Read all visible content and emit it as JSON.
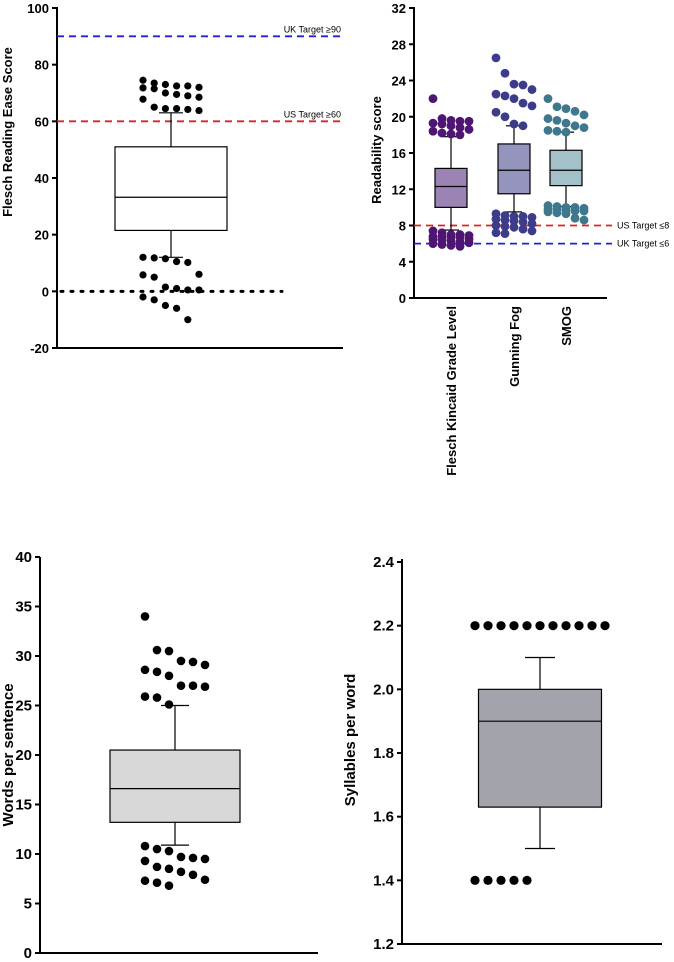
{
  "chart_data": [
    {
      "id": "fre",
      "type": "box",
      "ylabel": "Flesch Reading Ease Score",
      "ylim": [
        -20,
        100
      ],
      "yticks": [
        -20,
        0,
        20,
        40,
        60,
        80,
        100
      ],
      "reference_lines": [
        {
          "value": 90,
          "label": "UK Target ≥90",
          "color": "#2222cc",
          "style": "dashed"
        },
        {
          "value": 60,
          "label": "US Target ≥60",
          "color": "#dd2222",
          "style": "dashed"
        },
        {
          "value": 0,
          "label": "",
          "color": "#000000",
          "style": "dotted"
        }
      ],
      "boxes": [
        {
          "name": "",
          "color": "#ffffff",
          "point_color": "#000000",
          "q1": 21.5,
          "median": 33.2,
          "q3": 51,
          "whisker_low": 12,
          "whisker_high": 63,
          "outliers": [
            74.5,
            73.5,
            73,
            72.5,
            72.5,
            72,
            71.8,
            71.5,
            70,
            69.5,
            69,
            68.5,
            67.8,
            65,
            64.5,
            64.5,
            64.2,
            63.8,
            12,
            11.8,
            11.5,
            10.5,
            10.2,
            6,
            5.8,
            5,
            1.5,
            1,
            0.5,
            0.5,
            -2,
            -3,
            -5,
            -6,
            -10
          ]
        }
      ]
    },
    {
      "id": "grade",
      "type": "box",
      "ylabel": "Readability score",
      "ylim": [
        0,
        32
      ],
      "yticks": [
        0,
        4,
        8,
        12,
        16,
        20,
        24,
        28,
        32
      ],
      "categories": [
        "Flesch Kincaid Grade Level",
        "Gunning Fog",
        "SMOG"
      ],
      "reference_lines": [
        {
          "value": 8,
          "label": "US Target ≤8",
          "color": "#dd2222",
          "style": "dashed"
        },
        {
          "value": 6,
          "label": "UK Target ≤6",
          "color": "#2222cc",
          "style": "dashed"
        }
      ],
      "boxes": [
        {
          "name": "Flesch Kincaid Grade Level",
          "color": "#9b84b4",
          "point_color": "#4e1573",
          "q1": 10,
          "median": 12.3,
          "q3": 14.3,
          "whisker_low": 7.5,
          "whisker_high": 17.8,
          "outliers": [
            22,
            19.8,
            19.6,
            19.5,
            19.5,
            19.3,
            19.2,
            19,
            18.8,
            18.6,
            18.4,
            18.2,
            18.1,
            18,
            7.4,
            7.2,
            7,
            7,
            6.9,
            6.8,
            6.8,
            6.7,
            6.7,
            6.5,
            6.5,
            6.4,
            6.3,
            6.2,
            6.1,
            6,
            5.9,
            5.8,
            5.7
          ]
        },
        {
          "name": "Gunning Fog",
          "color": "#9494bc",
          "point_color": "#3c3c8a",
          "q1": 11.5,
          "median": 14.1,
          "q3": 17,
          "whisker_low": 9.5,
          "whisker_high": 19,
          "outliers": [
            26.5,
            24.8,
            23.6,
            23.5,
            23,
            22.5,
            22.3,
            22,
            21.5,
            21.2,
            20.5,
            20,
            19.2,
            19,
            9.3,
            9.1,
            9,
            9,
            8.9,
            8.7,
            8.6,
            8.5,
            8.4,
            8.2,
            8,
            7.9,
            7.8,
            7.6,
            7.4,
            7.2,
            7.1
          ]
        },
        {
          "name": "SMOG",
          "color": "#a4c0c8",
          "point_color": "#3f788c",
          "q1": 12.4,
          "median": 14.1,
          "q3": 16.3,
          "whisker_low": 10.1,
          "whisker_high": 18.3,
          "outliers": [
            22,
            21.1,
            20.9,
            20.6,
            20.2,
            19.8,
            19.6,
            19.3,
            19,
            18.8,
            18.5,
            18.4,
            18.3,
            10.2,
            10.1,
            10,
            10,
            9.9,
            9.8,
            9.8,
            9.7,
            9.6,
            9.6,
            9.5,
            9.4,
            9.3,
            8.8,
            8.6
          ]
        }
      ]
    },
    {
      "id": "wps",
      "type": "box",
      "ylabel": "Words per sentence",
      "ylim": [
        0,
        40
      ],
      "yticks": [
        0,
        5,
        10,
        15,
        20,
        25,
        30,
        35,
        40
      ],
      "reference_lines": [],
      "boxes": [
        {
          "name": "",
          "color": "#d8d8d8",
          "point_color": "#000000",
          "q1": 13.2,
          "median": 16.6,
          "q3": 20.5,
          "whisker_low": 10.9,
          "whisker_high": 25,
          "outliers": [
            34,
            30.6,
            30.5,
            29.5,
            29.4,
            29.1,
            28.6,
            28.4,
            28,
            27,
            27,
            26.9,
            25.9,
            25.8,
            25.1,
            10.8,
            10.5,
            10.3,
            9.7,
            9.6,
            9.5,
            9.3,
            8.7,
            8.5,
            8.2,
            7.9,
            7.4,
            7.3,
            7.1,
            6.8
          ]
        }
      ]
    },
    {
      "id": "spw",
      "type": "box",
      "ylabel": "Syllables per word",
      "ylim": [
        1.2,
        2.4
      ],
      "yticks": [
        "1.2",
        "1.4",
        "1.6",
        "1.8",
        "2.0",
        "2.2",
        "2.4"
      ],
      "reference_lines": [],
      "boxes": [
        {
          "name": "",
          "color": "#a3a3ab",
          "point_color": "#000000",
          "q1": 1.63,
          "median": 1.9,
          "q3": 2.0,
          "whisker_low": 1.5,
          "whisker_high": 2.1,
          "outliers": [
            2.2,
            2.2,
            2.2,
            2.2,
            2.2,
            2.2,
            2.2,
            2.2,
            2.2,
            2.2,
            2.2,
            1.4,
            1.4,
            1.4,
            1.4,
            1.4
          ]
        }
      ]
    }
  ]
}
